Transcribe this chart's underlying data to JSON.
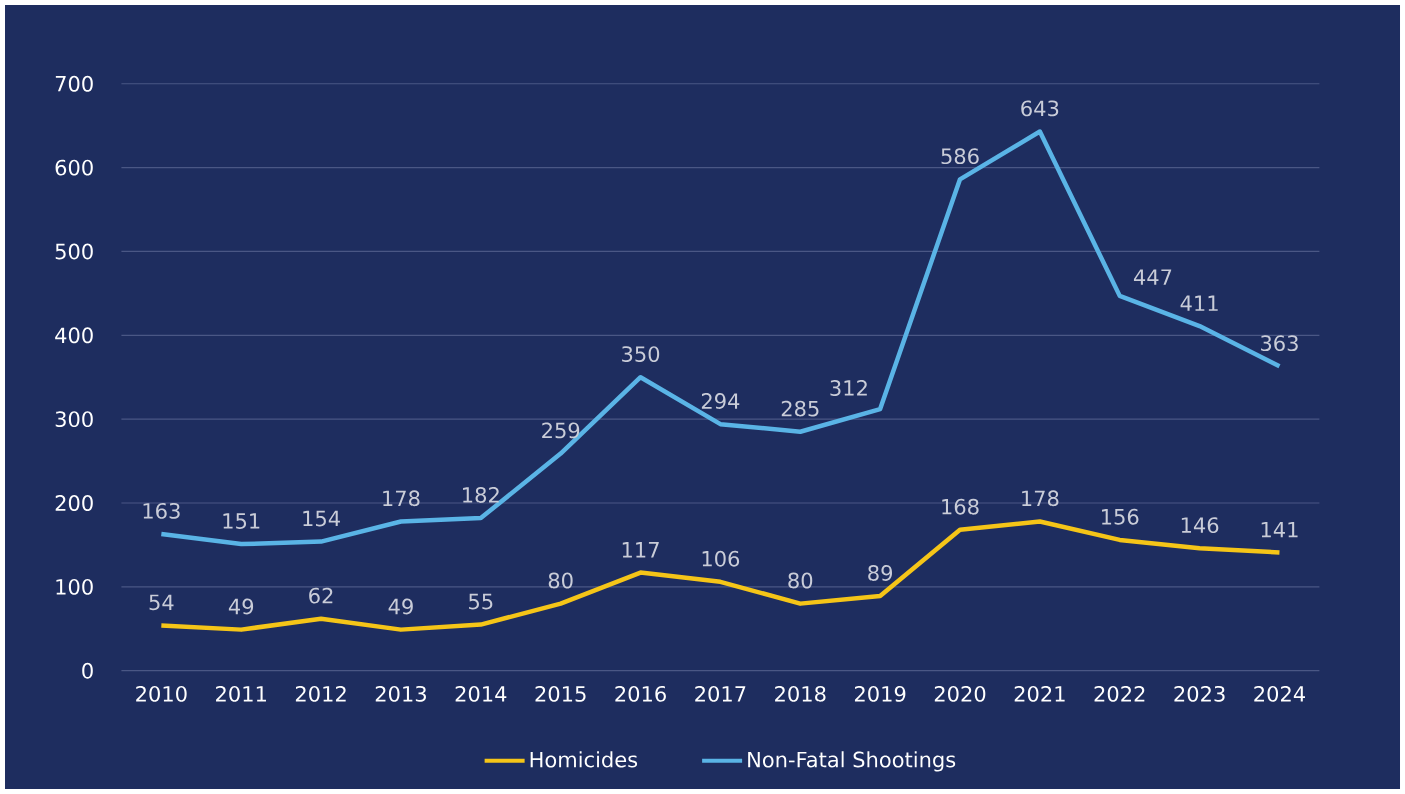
{
  "chart_data": {
    "type": "line",
    "categories": [
      "2010",
      "2011",
      "2012",
      "2013",
      "2014",
      "2015",
      "2016",
      "2017",
      "2018",
      "2019",
      "2020",
      "2021",
      "2022",
      "2023",
      "2024"
    ],
    "series": [
      {
        "name": "Homicides",
        "color": "#f5c518",
        "values": [
          54,
          49,
          62,
          49,
          55,
          80,
          117,
          106,
          80,
          89,
          168,
          178,
          156,
          146,
          141
        ]
      },
      {
        "name": "Non-Fatal Shootings",
        "color": "#5ab4e6",
        "values": [
          163,
          151,
          154,
          178,
          182,
          259,
          350,
          294,
          285,
          312,
          586,
          643,
          447,
          411,
          363
        ]
      }
    ],
    "ylim": [
      0,
      700
    ],
    "yticks": [
      0,
      100,
      200,
      300,
      400,
      500,
      600,
      700
    ],
    "grid": "y",
    "legend": "bottom",
    "data_labels": true,
    "line_style": "solid"
  }
}
